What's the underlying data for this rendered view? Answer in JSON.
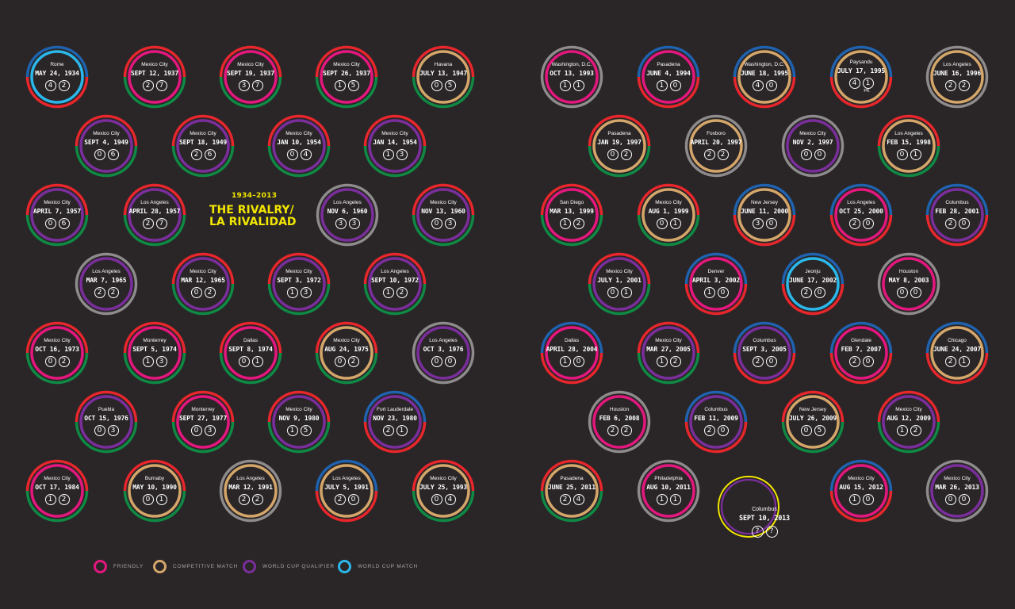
{
  "title": {
    "years": "1934–2013",
    "main": "THE RIVALRY/\nLA RIVALIDAD"
  },
  "colors": {
    "background": "#2a2627",
    "red": "#e8262c",
    "green": "#0f8a45",
    "blue": "#1f63b0",
    "gray": "#8e8b8c",
    "friendly": "#e3177d",
    "competitive": "#d4a66a",
    "qualifier": "#7a2e9c",
    "worldcup": "#2bb7ea",
    "upcoming": "#f3e600"
  },
  "legend": [
    {
      "type": "friendly",
      "label": "FRIENDLY"
    },
    {
      "type": "competitive",
      "label": "COMPETITIVE MATCH"
    },
    {
      "type": "qualifier",
      "label": "WORLD CUP QUALIFIER"
    },
    {
      "type": "worldcup",
      "label": "WORLD CUP MATCH"
    }
  ],
  "matches": [
    {
      "city": "Rome",
      "date": "MAY 24, 1934",
      "scores": [
        "4",
        "2"
      ],
      "type": "worldcup",
      "outer": "usa"
    },
    {
      "city": "Mexico City",
      "date": "SEPT 12, 1937",
      "scores": [
        "2",
        "7"
      ],
      "type": "friendly",
      "outer": "mex"
    },
    {
      "city": "Mexico City",
      "date": "SEPT 19, 1937",
      "scores": [
        "3",
        "7"
      ],
      "type": "friendly",
      "outer": "mex"
    },
    {
      "city": "Mexico City",
      "date": "SEPT 26, 1937",
      "scores": [
        "1",
        "5"
      ],
      "type": "friendly",
      "outer": "mex"
    },
    {
      "city": "Havana",
      "date": "JULY 13, 1947",
      "scores": [
        "0",
        "5"
      ],
      "type": "competitive",
      "outer": "mex"
    },
    {
      "city": "Mexico City",
      "date": "SEPT 4, 1949",
      "scores": [
        "0",
        "6"
      ],
      "type": "qualifier",
      "outer": "mex"
    },
    {
      "city": "Mexico City",
      "date": "SEPT 18, 1949",
      "scores": [
        "2",
        "6"
      ],
      "type": "qualifier",
      "outer": "mex"
    },
    {
      "city": "Mexico City",
      "date": "JAN 10, 1954",
      "scores": [
        "0",
        "4"
      ],
      "type": "qualifier",
      "outer": "mex"
    },
    {
      "city": "Mexico City",
      "date": "JAN 14, 1954",
      "scores": [
        "1",
        "3"
      ],
      "type": "qualifier",
      "outer": "mex"
    },
    {
      "city": "Mexico City",
      "date": "APRIL 7, 1957",
      "scores": [
        "0",
        "6"
      ],
      "type": "qualifier",
      "outer": "mex"
    },
    {
      "city": "Los Angeles",
      "date": "APRIL 28, 1957",
      "scores": [
        "2",
        "7"
      ],
      "type": "qualifier",
      "outer": "mex"
    },
    {
      "city": "Los Angeles",
      "date": "NOV 6, 1960",
      "scores": [
        "3",
        "3"
      ],
      "type": "qualifier",
      "outer": "tie"
    },
    {
      "city": "Mexico City",
      "date": "NOV 13, 1960",
      "scores": [
        "0",
        "3"
      ],
      "type": "qualifier",
      "outer": "mex"
    },
    {
      "city": "Los Angeles",
      "date": "MAR 7, 1965",
      "scores": [
        "2",
        "2"
      ],
      "type": "qualifier",
      "outer": "tie"
    },
    {
      "city": "Mexico City",
      "date": "MAR 12, 1965",
      "scores": [
        "0",
        "2"
      ],
      "type": "qualifier",
      "outer": "mex"
    },
    {
      "city": "Mexico City",
      "date": "SEPT 3, 1972",
      "scores": [
        "1",
        "3"
      ],
      "type": "qualifier",
      "outer": "mex"
    },
    {
      "city": "Los Angeles",
      "date": "SEPT 10, 1972",
      "scores": [
        "1",
        "2"
      ],
      "type": "qualifier",
      "outer": "mex"
    },
    {
      "city": "Mexico City",
      "date": "OCT 16, 1973",
      "scores": [
        "0",
        "2"
      ],
      "type": "friendly",
      "outer": "mex"
    },
    {
      "city": "Monterrey",
      "date": "SEPT 5, 1974",
      "scores": [
        "1",
        "3"
      ],
      "type": "friendly",
      "outer": "mex"
    },
    {
      "city": "Dallas",
      "date": "SEPT 8, 1974",
      "scores": [
        "0",
        "1"
      ],
      "type": "friendly",
      "outer": "mex"
    },
    {
      "city": "Mexico City",
      "date": "AUG 24, 1975",
      "scores": [
        "0",
        "2"
      ],
      "type": "competitive",
      "outer": "mex"
    },
    {
      "city": "Los Angeles",
      "date": "OCT 3, 1976",
      "scores": [
        "0",
        "0"
      ],
      "type": "qualifier",
      "outer": "tie"
    },
    {
      "city": "Puebla",
      "date": "OCT 15, 1976",
      "scores": [
        "0",
        "3"
      ],
      "type": "qualifier",
      "outer": "mex"
    },
    {
      "city": "Monterrey",
      "date": "SEPT 27, 1977",
      "scores": [
        "0",
        "3"
      ],
      "type": "friendly",
      "outer": "mex"
    },
    {
      "city": "Mexico City",
      "date": "NOV 9, 1980",
      "scores": [
        "1",
        "5"
      ],
      "type": "qualifier",
      "outer": "mex"
    },
    {
      "city": "Fort Lauderdale",
      "date": "NOV 23, 1980",
      "scores": [
        "2",
        "1"
      ],
      "type": "qualifier",
      "outer": "usa"
    },
    {
      "city": "Mexico City",
      "date": "OCT 17, 1984",
      "scores": [
        "1",
        "2"
      ],
      "type": "friendly",
      "outer": "mex"
    },
    {
      "city": "Burnaby",
      "date": "MAY 10, 1990",
      "scores": [
        "0",
        "1"
      ],
      "type": "competitive",
      "outer": "mex"
    },
    {
      "city": "Los Angeles",
      "date": "MAR 12, 1991",
      "scores": [
        "2",
        "2"
      ],
      "type": "competitive",
      "outer": "tie"
    },
    {
      "city": "Los Angeles",
      "date": "JULY 5, 1991",
      "scores": [
        "2",
        "0"
      ],
      "type": "competitive",
      "outer": "usa"
    },
    {
      "city": "Mexico City",
      "date": "JULY 25, 1993",
      "scores": [
        "0",
        "4"
      ],
      "type": "competitive",
      "outer": "mex"
    },
    {
      "city": "Washington, D.C.",
      "date": "OCT 13, 1993",
      "scores": [
        "1",
        "1"
      ],
      "type": "friendly",
      "outer": "tie"
    },
    {
      "city": "Pasadena",
      "date": "JUNE 4, 1994",
      "scores": [
        "1",
        "0"
      ],
      "type": "friendly",
      "outer": "usa"
    },
    {
      "city": "Washington, D.C.",
      "date": "JUNE 18, 1995",
      "scores": [
        "4",
        "0"
      ],
      "type": "competitive",
      "outer": "usa"
    },
    {
      "city": "Paysandu",
      "date": "JULY 17, 1995",
      "scores": [
        "4",
        "1"
      ],
      "note": "PK",
      "type": "competitive",
      "outer": "usa"
    },
    {
      "city": "Los Angeles",
      "date": "JUNE 16, 1996",
      "scores": [
        "2",
        "2"
      ],
      "type": "competitive",
      "outer": "tie"
    },
    {
      "city": "Pasadena",
      "date": "JAN 19, 1997",
      "scores": [
        "0",
        "2"
      ],
      "type": "competitive",
      "outer": "mex"
    },
    {
      "city": "Foxboro",
      "date": "APRIL 20, 1997",
      "scores": [
        "2",
        "2"
      ],
      "type": "competitive",
      "outer": "tie"
    },
    {
      "city": "Mexico City",
      "date": "NOV 2, 1997",
      "scores": [
        "0",
        "0"
      ],
      "type": "qualifier",
      "outer": "tie"
    },
    {
      "city": "Los Angeles",
      "date": "FEB 15, 1998",
      "scores": [
        "0",
        "1"
      ],
      "type": "competitive",
      "outer": "mex"
    },
    {
      "city": "San Diego",
      "date": "MAR 13, 1999",
      "scores": [
        "1",
        "2"
      ],
      "type": "friendly",
      "outer": "mex"
    },
    {
      "city": "Mexico City",
      "date": "AUG 1, 1999",
      "scores": [
        "0",
        "1"
      ],
      "type": "competitive",
      "outer": "mex"
    },
    {
      "city": "New Jersey",
      "date": "JUNE 11, 2000",
      "scores": [
        "3",
        "0"
      ],
      "type": "competitive",
      "outer": "usa"
    },
    {
      "city": "Los Angeles",
      "date": "OCT 25, 2000",
      "scores": [
        "2",
        "0"
      ],
      "type": "friendly",
      "outer": "usa"
    },
    {
      "city": "Columbus",
      "date": "FEB 28, 2001",
      "scores": [
        "2",
        "0"
      ],
      "type": "qualifier",
      "outer": "usa"
    },
    {
      "city": "Mexico City",
      "date": "JULY 1, 2001",
      "scores": [
        "0",
        "1"
      ],
      "type": "qualifier",
      "outer": "mex"
    },
    {
      "city": "Denver",
      "date": "APRIL 3, 2002",
      "scores": [
        "1",
        "0"
      ],
      "type": "friendly",
      "outer": "usa"
    },
    {
      "city": "Jeonju",
      "date": "JUNE 17, 2002",
      "scores": [
        "2",
        "0"
      ],
      "type": "worldcup",
      "outer": "usa"
    },
    {
      "city": "Houston",
      "date": "MAY 8, 2003",
      "scores": [
        "0",
        "0"
      ],
      "type": "friendly",
      "outer": "tie"
    },
    {
      "city": "Dallas",
      "date": "APRIL 28, 2004",
      "scores": [
        "1",
        "0"
      ],
      "type": "friendly",
      "outer": "usa"
    },
    {
      "city": "Mexico City",
      "date": "MAR 27, 2005",
      "scores": [
        "1",
        "2"
      ],
      "type": "qualifier",
      "outer": "mex"
    },
    {
      "city": "Columbus",
      "date": "SEPT 3, 2005",
      "scores": [
        "2",
        "0"
      ],
      "type": "qualifier",
      "outer": "usa"
    },
    {
      "city": "Glendale",
      "date": "FEB 7, 2007",
      "scores": [
        "2",
        "0"
      ],
      "type": "friendly",
      "outer": "usa"
    },
    {
      "city": "Chicago",
      "date": "JUNE 24, 2007",
      "scores": [
        "2",
        "1"
      ],
      "type": "competitive",
      "outer": "usa"
    },
    {
      "city": "Houston",
      "date": "FEB 6, 2008",
      "scores": [
        "2",
        "2"
      ],
      "type": "friendly",
      "outer": "tie"
    },
    {
      "city": "Columbus",
      "date": "FEB 11, 2009",
      "scores": [
        "2",
        "0"
      ],
      "type": "qualifier",
      "outer": "usa"
    },
    {
      "city": "New Jersey",
      "date": "JULY 26, 2009",
      "scores": [
        "0",
        "5"
      ],
      "type": "competitive",
      "outer": "mex"
    },
    {
      "city": "Mexico City",
      "date": "AUG 12, 2009",
      "scores": [
        "1",
        "2"
      ],
      "type": "qualifier",
      "outer": "mex"
    },
    {
      "city": "Pasadena",
      "date": "JUNE 25, 2011",
      "scores": [
        "2",
        "4"
      ],
      "type": "competitive",
      "outer": "mex"
    },
    {
      "city": "Philadelphia",
      "date": "AUG 10, 2011",
      "scores": [
        "1",
        "1"
      ],
      "type": "friendly",
      "outer": "tie"
    },
    {
      "city": "Columbus",
      "date": "SEPT 10, 2013",
      "scores": [
        "?",
        "?"
      ],
      "type": "qualifier",
      "outer": "upcoming"
    },
    {
      "city": "Mexico City",
      "date": "AUG 15, 2012",
      "scores": [
        "1",
        "0"
      ],
      "type": "friendly",
      "outer": "usa"
    },
    {
      "city": "Mexico City",
      "date": "MAR 26, 2013",
      "scores": [
        "0",
        "0"
      ],
      "type": "qualifier",
      "outer": "tie"
    }
  ]
}
